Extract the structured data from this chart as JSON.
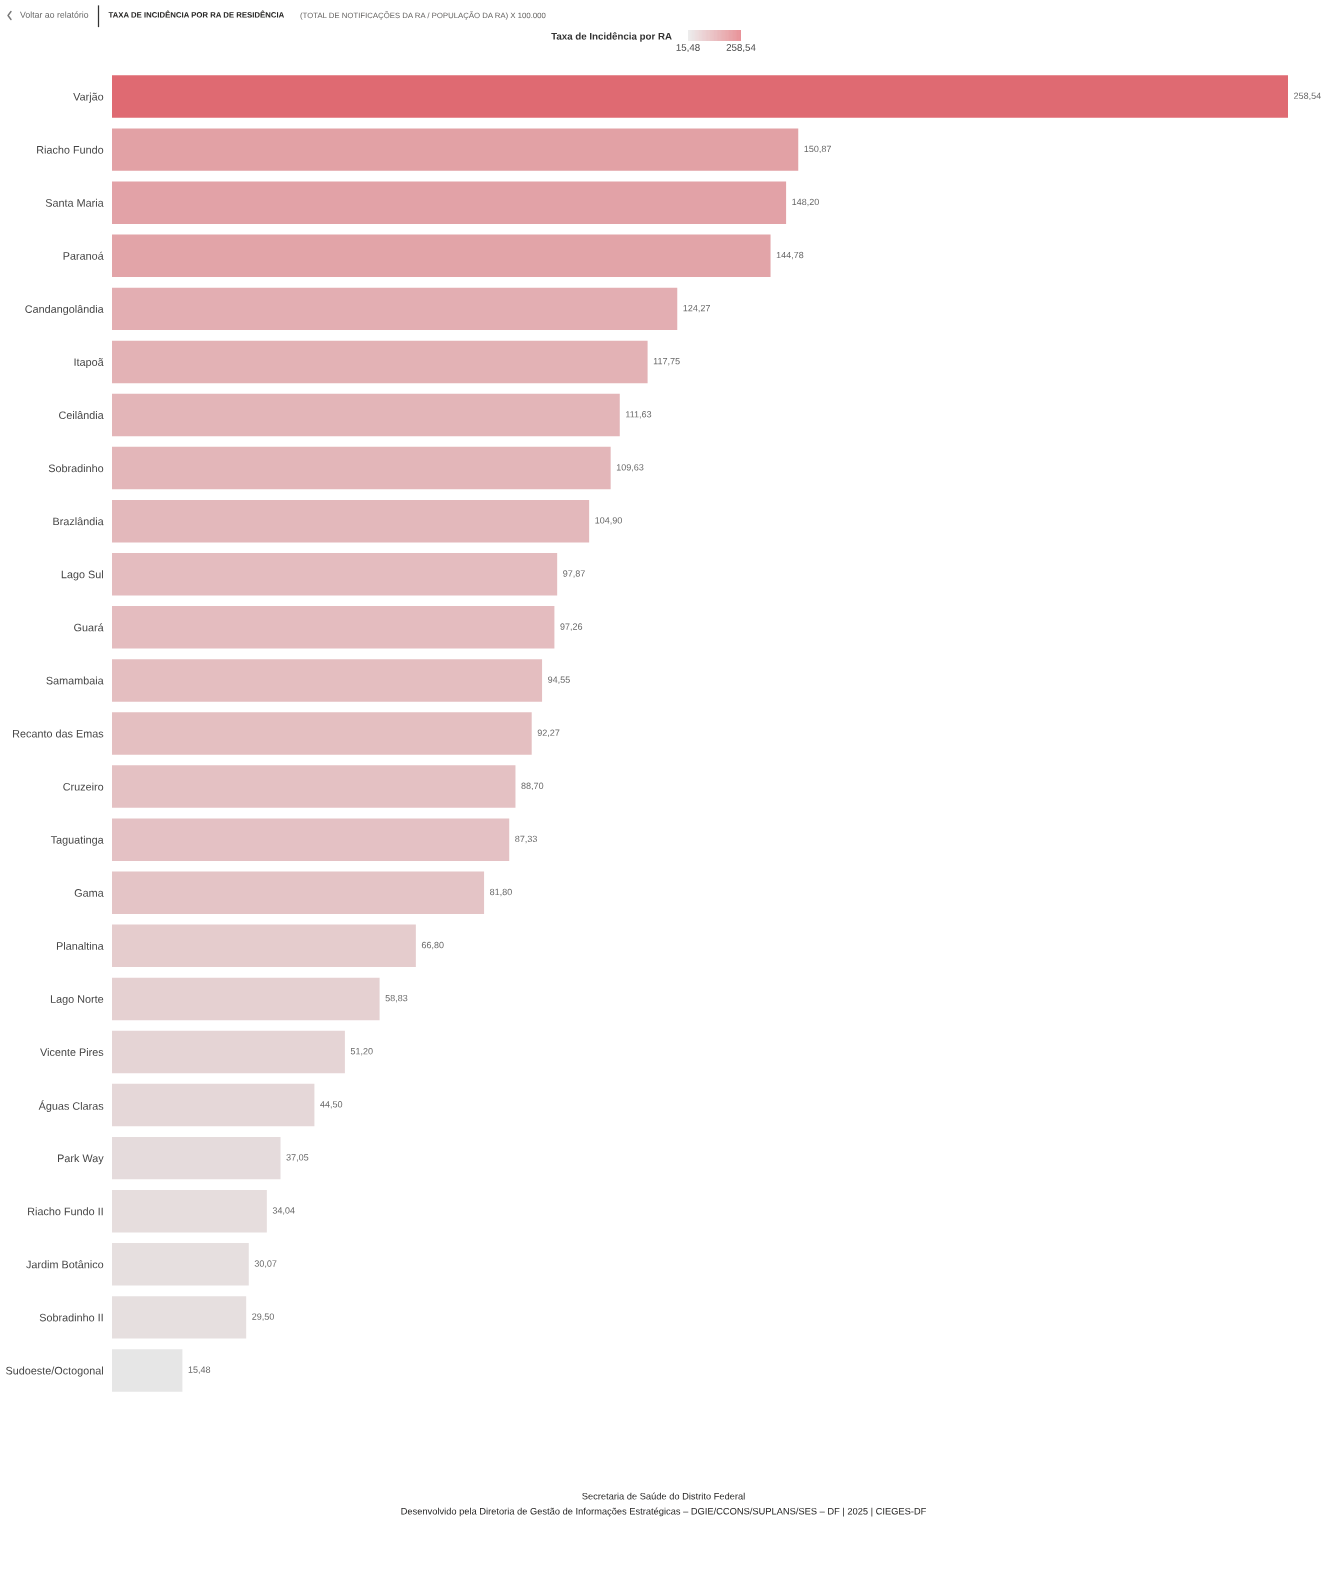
{
  "chart_data": {
    "type": "bar",
    "orientation": "horizontal",
    "title": "TAXA DE INCIDÊNCIA POR RA DE RESIDÊNCIA",
    "subtitle": "(TOTAL DE NOTIFICAÇÕES DA RA / POPULAÇÃO DA RA) X 100.000",
    "clabel": "Taxa de Incidência por RA",
    "clim": [
      15.48,
      258.54
    ],
    "cticks": [
      {
        "value": 15.48,
        "label": "15,48"
      },
      {
        "value": 258.54,
        "label": "258,54"
      }
    ],
    "categories": [
      "Varjão",
      "Riacho Fundo",
      "Santa Maria",
      "Paranoá",
      "Candangolândia",
      "Itapoã",
      "Ceilândia",
      "Sobradinho",
      "Brazlândia",
      "Lago Sul",
      "Guará",
      "Samambaia",
      "Recanto das Emas",
      "Cruzeiro",
      "Taguatinga",
      "Gama",
      "Planaltina",
      "Lago Norte",
      "Vicente Pires",
      "Águas Claras",
      "Park Way",
      "Riacho Fundo II",
      "Jardim Botânico",
      "Sobradinho II",
      "Sudoeste/Octogonal"
    ],
    "values": [
      258.54,
      150.87,
      148.2,
      144.78,
      124.27,
      117.75,
      111.63,
      109.63,
      104.9,
      97.87,
      97.26,
      94.55,
      92.27,
      88.7,
      87.33,
      81.8,
      66.8,
      58.83,
      51.2,
      44.5,
      37.05,
      34.04,
      30.07,
      29.5,
      15.48
    ],
    "value_labels": [
      "258,54",
      "150,87",
      "148,20",
      "144,78",
      "124,27",
      "117,75",
      "111,63",
      "109,63",
      "104,90",
      "97,87",
      "97,26",
      "94,55",
      "92,27",
      "88,70",
      "87,33",
      "81,80",
      "66,80",
      "58,83",
      "51,20",
      "44,50",
      "37,05",
      "34,04",
      "30,07",
      "29,50",
      "15,48"
    ],
    "colors": [
      "#df6a72",
      "#e2a1a5",
      "#e2a2a7",
      "#e2a4a8",
      "#e3aeb2",
      "#e3b2b5",
      "#e3b5b8",
      "#e3b6b9",
      "#e3b8bb",
      "#e4bcbf",
      "#e4bcbf",
      "#e4bec0",
      "#e4bfc1",
      "#e4c1c3",
      "#e4c1c4",
      "#e4c4c6",
      "#e5cccd",
      "#e5d0d1",
      "#e5d4d5",
      "#e5d7d8",
      "#e5dbdc",
      "#e6dddd",
      "#e6dfdf",
      "#e6dfdf",
      "#e6e6e6"
    ],
    "tick_labels": "y",
    "annotations": [
      "Voltar ao relatório",
      "Secretaria de Saúde do Distrito Federal",
      "Desenvolvido pela Diretoria de Gestão de Informações Estratégicas – DGIE/CCONS/SUPLANS/SES – DF | 2025 | CIEGES-DF"
    ]
  }
}
